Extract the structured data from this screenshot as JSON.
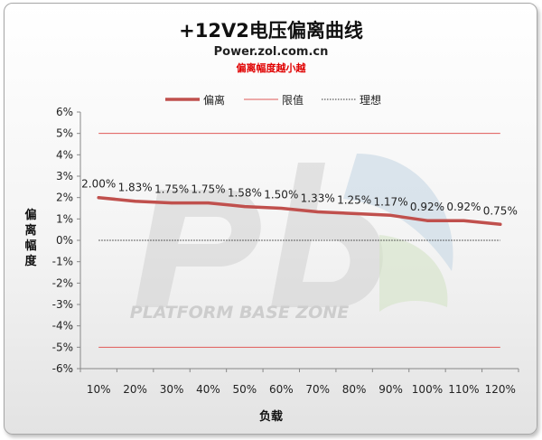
{
  "header": {
    "title": "+12V2电压偏离曲线",
    "site": "Power.zol.com.cn",
    "note": "偏离幅度越小越"
  },
  "watermark": {
    "text": "PLATFORM BASE ZONE"
  },
  "colors": {
    "series": "#c0504d",
    "limit": "#e05a57",
    "ideal": "#333333",
    "axis": "#888888"
  },
  "chart_data": {
    "type": "line",
    "xlabel": "负载",
    "ylabel": "偏离幅度",
    "categories": [
      "10%",
      "20%",
      "30%",
      "40%",
      "50%",
      "60%",
      "70%",
      "80%",
      "90%",
      "100%",
      "110%",
      "120%"
    ],
    "ylim": [
      -6,
      6
    ],
    "yticks": [
      "6%",
      "5%",
      "4%",
      "3%",
      "2%",
      "1%",
      "0%",
      "-1%",
      "-2%",
      "-3%",
      "-4%",
      "-5%",
      "-6%"
    ],
    "legend_position": "top-left",
    "grid": false,
    "series": [
      {
        "name": "偏离",
        "values": [
          2.0,
          1.83,
          1.75,
          1.75,
          1.58,
          1.5,
          1.33,
          1.25,
          1.17,
          0.92,
          0.92,
          0.75
        ],
        "labels": [
          "2.00%",
          "1.83%",
          "1.75%",
          "1.75%",
          "1.58%",
          "1.50%",
          "1.33%",
          "1.25%",
          "1.17%",
          "0.92%",
          "0.92%",
          "0.75%"
        ]
      },
      {
        "name": "限值",
        "values": [
          5,
          5,
          5,
          5,
          5,
          5,
          5,
          5,
          5,
          5,
          5,
          5
        ],
        "mirror_values": [
          -5,
          -5,
          -5,
          -5,
          -5,
          -5,
          -5,
          -5,
          -5,
          -5,
          -5,
          -5
        ]
      },
      {
        "name": "理想",
        "values": [
          0,
          0,
          0,
          0,
          0,
          0,
          0,
          0,
          0,
          0,
          0,
          0
        ]
      }
    ]
  }
}
